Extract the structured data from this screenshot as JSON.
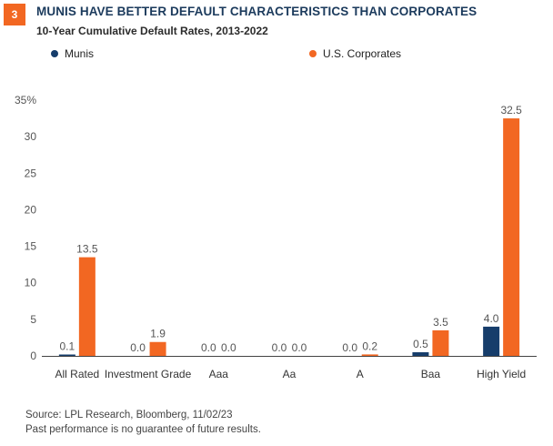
{
  "figure_number": "3",
  "colors": {
    "badge": "#f26722",
    "munis": "#163d6b",
    "corporates": "#f26722",
    "axis": "#444444",
    "label": "#555555"
  },
  "chart_data": {
    "type": "bar",
    "title": "MUNIS HAVE BETTER DEFAULT CHARACTERISTICS THAN CORPORATES",
    "subtitle": "10-Year Cumulative Default Rates, 2013-2022",
    "categories": [
      "All Rated",
      "Investment Grade",
      "Aaa",
      "Aa",
      "A",
      "Baa",
      "High Yield"
    ],
    "series": [
      {
        "name": "Munis",
        "values": [
          0.1,
          0.0,
          0.0,
          0.0,
          0.0,
          0.5,
          4.0
        ],
        "labels": [
          "0.1",
          "0.0",
          "0.0",
          "0.0",
          "0.0",
          "0.5",
          "4.0"
        ]
      },
      {
        "name": "U.S. Corporates",
        "values": [
          13.5,
          1.9,
          0.0,
          0.0,
          0.2,
          3.5,
          32.5
        ],
        "labels": [
          "13.5",
          "1.9",
          "0.0",
          "0.0",
          "0.2",
          "3.5",
          "32.5"
        ]
      }
    ],
    "yticks": [
      "0",
      "5",
      "10",
      "15",
      "20",
      "25",
      "30",
      "35%"
    ],
    "ylim": [
      0,
      35
    ],
    "legend_position": "top-left",
    "grid": false
  },
  "footer": {
    "source": "Source: LPL Research, Bloomberg,  11/02/23",
    "disclaimer": "Past performance is no guarantee of future results."
  }
}
